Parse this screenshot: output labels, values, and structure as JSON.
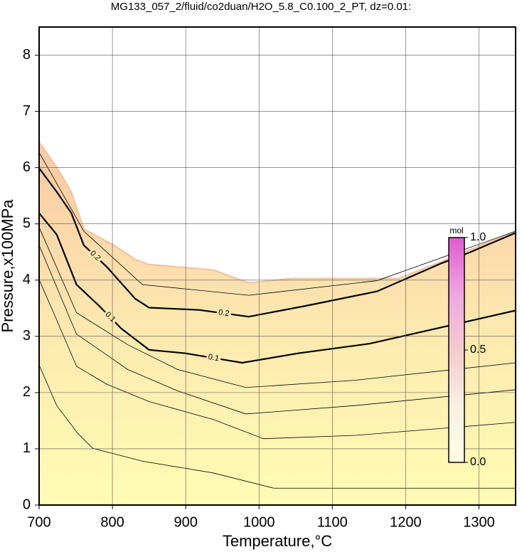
{
  "chart_data": {
    "type": "contour",
    "title": "MG133_057_2/fluid/co2duan/H2O_5.8_C0.100_2_PT, dz=0.01:",
    "xlabel": "Temperature,°C",
    "ylabel": "Pressure,x100MPa",
    "xlim": [
      700,
      1350
    ],
    "ylim": [
      0,
      8.5
    ],
    "xticks": [
      700,
      800,
      900,
      1000,
      1100,
      1200,
      1300
    ],
    "yticks": [
      0,
      1,
      2,
      3,
      4,
      5,
      6,
      7,
      8
    ],
    "grid": true,
    "fill_colors": [
      "#fffcb4",
      "#fde8b0",
      "#f9c9a4"
    ],
    "field_boundary": {
      "color": "#f6c0a0",
      "x": [
        700,
        724,
        744,
        761,
        802,
        831,
        849,
        938,
        986,
        1045,
        1190,
        1249,
        1350
      ],
      "y": [
        6.46,
        6.01,
        5.57,
        4.91,
        4.62,
        4.37,
        4.28,
        4.18,
        3.95,
        4.03,
        4.03,
        4.33,
        4.87
      ]
    },
    "series": [
      {
        "color": "#000000",
        "width": 0.8,
        "x": [
          700,
          724,
          753,
          773,
          841,
          938,
          1020,
          1132,
          1350
        ],
        "y": [
          2.49,
          1.77,
          1.27,
          1.01,
          0.78,
          0.57,
          0.3,
          0.3,
          0.3
        ]
      },
      {
        "color": "#000000",
        "width": 0.8,
        "x": [
          700,
          724,
          751,
          792,
          850,
          938,
          1006,
          1132,
          1350
        ],
        "y": [
          4.01,
          3.29,
          2.47,
          2.15,
          1.84,
          1.52,
          1.18,
          1.24,
          1.47
        ]
      },
      {
        "color": "#000000",
        "width": 0.8,
        "x": [
          700,
          751,
          821,
          889,
          982,
          1132,
          1350
        ],
        "y": [
          4.62,
          3.04,
          2.41,
          2.03,
          1.62,
          1.77,
          2.05
        ]
      },
      {
        "color": "#000000",
        "width": 0.8,
        "x": [
          700,
          751,
          821,
          889,
          982,
          1132,
          1350
        ],
        "y": [
          4.94,
          3.42,
          2.85,
          2.41,
          2.09,
          2.22,
          2.53
        ]
      },
      {
        "label": "0.1",
        "color": "#000000",
        "width": 2.2,
        "x": [
          700,
          724,
          751,
          782,
          812,
          850,
          899,
          977,
          1054,
          1151,
          1249,
          1350
        ],
        "y": [
          5.19,
          4.81,
          3.92,
          3.54,
          3.14,
          2.76,
          2.7,
          2.53,
          2.7,
          2.87,
          3.16,
          3.46
        ]
      },
      {
        "label": "0.2",
        "color": "#000000",
        "width": 2.2,
        "x": [
          700,
          724,
          744,
          761,
          792,
          831,
          850,
          918,
          986,
          1063,
          1161,
          1249,
          1287,
          1350
        ],
        "y": [
          5.99,
          5.57,
          5.19,
          4.62,
          4.24,
          3.67,
          3.51,
          3.47,
          3.35,
          3.54,
          3.8,
          4.3,
          4.49,
          4.84
        ]
      },
      {
        "color": "#000000",
        "width": 0.8,
        "x": [
          700,
          761,
          841,
          986,
          1161,
          1350
        ],
        "y": [
          6.27,
          4.87,
          3.92,
          3.73,
          3.99,
          4.87
        ]
      }
    ],
    "colorbar": {
      "label": "mol",
      "lim": [
        0,
        1
      ],
      "colors": [
        "#fffde4",
        "#fbefe4",
        "#f2cccc",
        "#f0a6e2",
        "#dc5ccf"
      ],
      "ticks": [
        {
          "value": 0,
          "label": "0.0"
        },
        {
          "value": 0.5,
          "label": "0.5"
        },
        {
          "value": 1,
          "label": "1.0"
        }
      ]
    }
  }
}
